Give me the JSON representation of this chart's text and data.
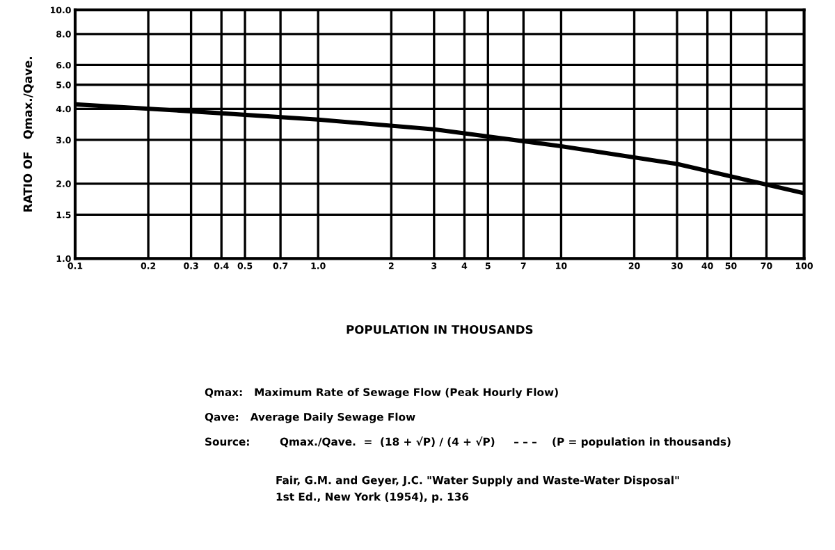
{
  "chart_data": {
    "type": "line",
    "xlabel": "POPULATION IN THOUSANDS",
    "ylabel": "RATIO OF   Qmax./Qave.",
    "x": [
      0.1,
      0.3,
      1.0,
      3,
      10,
      30,
      100
    ],
    "series": [
      {
        "color": "#000000",
        "values": [
          4.17,
          3.91,
          3.62,
          3.31,
          2.83,
          2.4,
          1.83
        ]
      }
    ],
    "log": "xy",
    "xlim": [
      0.1,
      100
    ],
    "ylim": [
      1.0,
      10.0
    ],
    "xticks": [
      0.1,
      0.2,
      0.3,
      0.4,
      0.5,
      0.7,
      {
        "value": 1,
        "label": "1.0"
      },
      2,
      3,
      4,
      5,
      7,
      10,
      20,
      30,
      40,
      50,
      70,
      100
    ],
    "yticks": [
      {
        "value": 1,
        "label": "1.0"
      },
      1.5,
      {
        "value": 2,
        "label": "2.0"
      },
      {
        "value": 3,
        "label": "3.0"
      },
      {
        "value": 4,
        "label": "4.0"
      },
      {
        "value": 5,
        "label": "5.0"
      },
      {
        "value": 6,
        "label": "6.0"
      },
      {
        "value": 8,
        "label": "8.0"
      },
      {
        "value": 10,
        "label": "10.0"
      }
    ],
    "grid": true,
    "marker": "none",
    "line_style": "solid",
    "annotations": [
      "Qmax:   Maximum Rate of Sewage Flow (Peak Hourly Flow)",
      "Qave:   Average Daily Sewage Flow",
      "Source:        Qmax./Qave.  =  (18 + √P) / (4 + √P)     – – –    (P = population in thousands)",
      "Fair, G.M. and Geyer, J.C. \"Water Supply and Waste-Water Disposal\"",
      "1st Ed., New York (1954), p. 136"
    ]
  }
}
